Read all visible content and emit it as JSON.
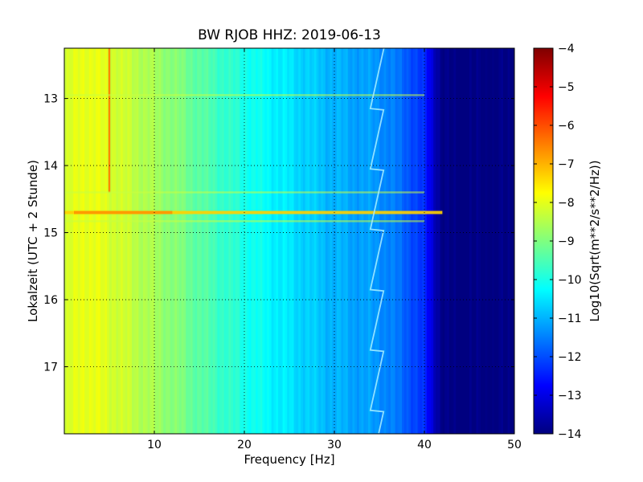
{
  "chart_data": {
    "type": "heatmap",
    "title": "BW RJOB HHZ: 2019-06-13",
    "xlabel": "Frequency [Hz]",
    "ylabel": "Lokalzeit (UTC + 2 Stunde)",
    "xlim": [
      0,
      50
    ],
    "ylim": [
      12.25,
      18.0
    ],
    "y_inverted": true,
    "x_ticks": [
      10,
      20,
      30,
      40,
      50
    ],
    "y_ticks": [
      13,
      14,
      15,
      16,
      17
    ],
    "grid": true,
    "colormap": "jet",
    "colorbar": {
      "label": "Log10(Sqrt(m**2/s**2/Hz))",
      "min": -14,
      "max": -4,
      "ticks": [
        -4,
        -5,
        -6,
        -7,
        -8,
        -9,
        -10,
        -11,
        -12,
        -13,
        -14
      ]
    },
    "level_profile": {
      "frequency_hz": [
        0,
        2,
        5,
        8,
        12,
        16,
        20,
        25,
        30,
        35,
        38,
        40,
        41,
        42,
        50
      ],
      "log10_amplitude": [
        -8.3,
        -7.9,
        -8.1,
        -8.4,
        -8.9,
        -9.5,
        -10.0,
        -10.5,
        -11.0,
        -11.3,
        -11.8,
        -12.4,
        -13.2,
        -14.0,
        -14.0
      ]
    },
    "features": {
      "narrowband_line_hz": 5,
      "narrowband_line_span_hours": [
        12.25,
        14.4
      ],
      "broadband_events_hours": [
        12.95,
        14.4,
        14.7,
        14.83
      ],
      "drifting_tone_hz": [
        34.0,
        35.5
      ]
    }
  }
}
